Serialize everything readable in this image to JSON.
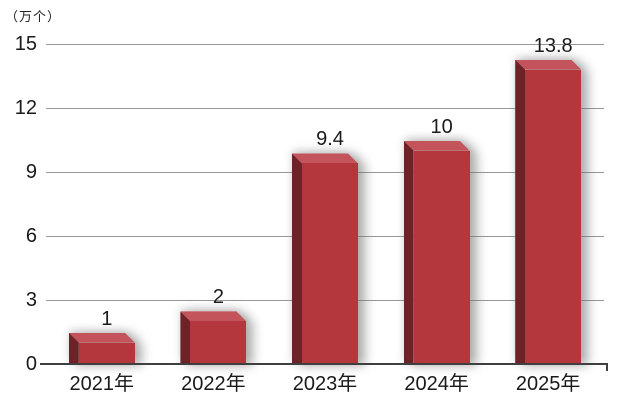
{
  "chart_data": {
    "type": "bar",
    "title": "",
    "unit_label": "（万个）",
    "categories": [
      "2021年",
      "2022年",
      "2023年",
      "2024年",
      "2025年"
    ],
    "values": [
      1,
      2,
      9.4,
      10,
      13.8
    ],
    "value_labels": [
      "1",
      "2",
      "9.4",
      "10",
      "13.8"
    ],
    "y_ticks": [
      0,
      3,
      6,
      9,
      12,
      15
    ],
    "ylim": [
      0,
      15
    ],
    "grid": true,
    "legend": "none",
    "bar_color_front": "#b5373e",
    "bar_color_side": "#6e2228",
    "bar_color_top": "#c4545c",
    "axis_color": "#3f3f3f",
    "grid_color": "#979797",
    "label_color": "#1a1a1a"
  }
}
